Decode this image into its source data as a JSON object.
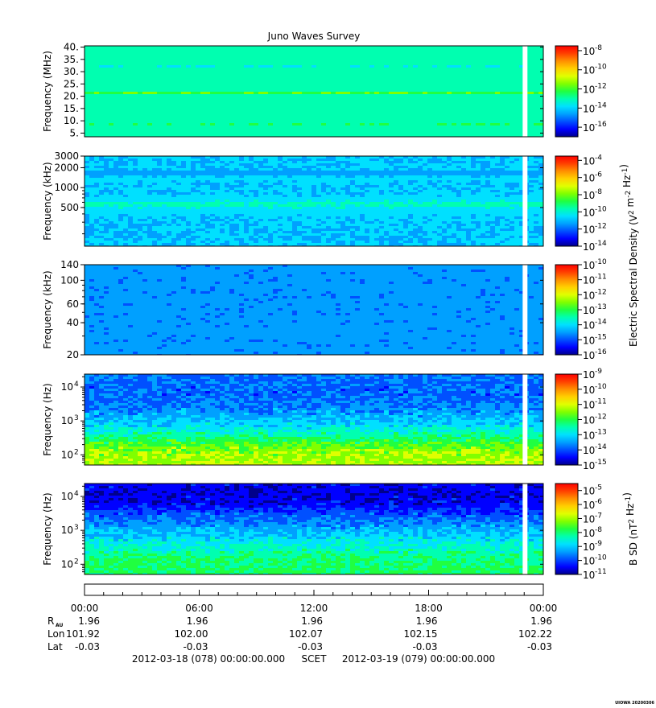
{
  "title": "Juno Waves Survey",
  "footer_stamp": "UIOWA 20200306",
  "colormap": [
    "#00008c",
    "#0000ff",
    "#0050ff",
    "#00a0ff",
    "#00e0ff",
    "#00ffb0",
    "#20ff40",
    "#80ff00",
    "#e0ff00",
    "#ffd000",
    "#ff9000",
    "#ff4000",
    "#ff0000"
  ],
  "gap": {
    "start_hour": 22.92,
    "end_hour": 23.17
  },
  "colorbar_groups": [
    {
      "label": "Electric Spectral Density (V",
      "sup1": "2",
      "mid": " m",
      "sup2": "-2",
      "mid2": " Hz",
      "sup3": "-1",
      "end": ")",
      "panels": [
        0,
        1,
        2,
        3
      ]
    },
    {
      "label": "B SD (nT",
      "sup1": "2",
      "mid": " Hz",
      "sup2": "-1",
      "mid2": "",
      "sup3": "",
      "end": ")",
      "panels": [
        4
      ]
    }
  ],
  "chart_data": [
    {
      "type": "heatmap",
      "name": "HFR high band",
      "ylabel": "Frequency (MHz)",
      "yscale": "linear",
      "ylim": [
        3.5,
        40.5
      ],
      "yticks": [
        {
          "v": 5,
          "label": "5."
        },
        {
          "v": 10,
          "label": "10."
        },
        {
          "v": 15,
          "label": "15."
        },
        {
          "v": 20,
          "label": "20."
        },
        {
          "v": 25,
          "label": "25."
        },
        {
          "v": 30,
          "label": "30."
        },
        {
          "v": 35,
          "label": "35."
        },
        {
          "v": 40,
          "label": "40."
        }
      ],
      "zscale": "log",
      "zlim": [
        -17,
        -7.5
      ],
      "zticks": [
        {
          "exp": -8
        },
        {
          "exp": -10
        },
        {
          "exp": -12
        },
        {
          "exp": -14
        },
        {
          "exp": -16
        }
      ],
      "base_level": -13.2,
      "bands": [
        {
          "center": 21.3,
          "width": 0.8,
          "level": -11.9
        },
        {
          "center": 8.7,
          "width": 0.7,
          "level": -12.7
        },
        {
          "center": 32.5,
          "width": 0.5,
          "level": -13.5
        }
      ]
    },
    {
      "type": "heatmap",
      "name": "HFR low band",
      "ylabel": "Frequency (kHz)",
      "yscale": "log",
      "ylim": [
        130,
        3000
      ],
      "yticks": [
        {
          "v": 500,
          "label": "500"
        },
        {
          "v": 1000,
          "label": "1000"
        },
        {
          "v": 2000,
          "label": "2000"
        },
        {
          "v": 3000,
          "label": "3000"
        }
      ],
      "zscale": "log",
      "zlim": [
        -14,
        -3.5
      ],
      "zticks": [
        {
          "exp": -4
        },
        {
          "exp": -6
        },
        {
          "exp": -8
        },
        {
          "exp": -10
        },
        {
          "exp": -12
        },
        {
          "exp": -14
        }
      ],
      "base_level": -10.9,
      "bands": [
        {
          "center": 560,
          "width": 120,
          "level": -9.9
        },
        {
          "center": 1680,
          "width": 90,
          "level": -11.4
        },
        {
          "center": 1350,
          "width": 80,
          "level": -10.5
        }
      ]
    },
    {
      "type": "heatmap",
      "name": "LFR high",
      "ylabel": "Frequency (kHz)",
      "yscale": "log",
      "ylim": [
        20,
        140
      ],
      "yticks": [
        {
          "v": 20,
          "label": "20"
        },
        {
          "v": 40,
          "label": "40"
        },
        {
          "v": 60,
          "label": "60"
        },
        {
          "v": 100,
          "label": "100"
        },
        {
          "v": 140,
          "label": "140"
        }
      ],
      "zscale": "log",
      "zlim": [
        -16,
        -10
      ],
      "zticks": [
        {
          "exp": -10
        },
        {
          "exp": -11
        },
        {
          "exp": -12
        },
        {
          "exp": -13
        },
        {
          "exp": -14
        },
        {
          "exp": -15
        },
        {
          "exp": -16
        }
      ],
      "base_level": -14.6,
      "bands": []
    },
    {
      "type": "heatmap",
      "name": "LFR low (E)",
      "ylabel": "Frequency (Hz)",
      "yscale": "log",
      "ylim": [
        50,
        24000
      ],
      "yticks": [
        {
          "v": 100,
          "label": "10",
          "exp": "2"
        },
        {
          "v": 1000,
          "label": "10",
          "exp": "3"
        },
        {
          "v": 10000,
          "label": "10",
          "exp": "4"
        }
      ],
      "zscale": "log",
      "zlim": [
        -15,
        -9
      ],
      "zticks": [
        {
          "exp": -9
        },
        {
          "exp": -10
        },
        {
          "exp": -11
        },
        {
          "exp": -12
        },
        {
          "exp": -13
        },
        {
          "exp": -14
        },
        {
          "exp": -15
        }
      ],
      "profile": [
        [
          50,
          -11.2
        ],
        [
          150,
          -11.5
        ],
        [
          300,
          -12.2
        ],
        [
          700,
          -13.0
        ],
        [
          2000,
          -13.6
        ],
        [
          6000,
          -13.9
        ],
        [
          24000,
          -13.8
        ]
      ]
    },
    {
      "type": "heatmap",
      "name": "LFR low (B)",
      "ylabel": "Frequency (Hz)",
      "yscale": "log",
      "ylim": [
        50,
        24000
      ],
      "yticks": [
        {
          "v": 100,
          "label": "10",
          "exp": "2"
        },
        {
          "v": 1000,
          "label": "10",
          "exp": "3"
        },
        {
          "v": 10000,
          "label": "10",
          "exp": "4"
        }
      ],
      "zscale": "log",
      "zlim": [
        -11,
        -4.5
      ],
      "zticks": [
        {
          "exp": -5
        },
        {
          "exp": -6
        },
        {
          "exp": -7
        },
        {
          "exp": -8
        },
        {
          "exp": -9
        },
        {
          "exp": -10
        },
        {
          "exp": -11
        }
      ],
      "profile": [
        [
          50,
          -7.9
        ],
        [
          150,
          -8.0
        ],
        [
          400,
          -8.6
        ],
        [
          1000,
          -9.2
        ],
        [
          2500,
          -9.8
        ],
        [
          6000,
          -10.5
        ],
        [
          12000,
          -10.6
        ],
        [
          24000,
          -10.5
        ]
      ]
    }
  ],
  "time_axis": {
    "hours": [
      0,
      6,
      12,
      18,
      24
    ],
    "labels": [
      "00:00",
      "06:00",
      "12:00",
      "18:00",
      "00:00"
    ]
  },
  "ephemeris": [
    {
      "name": "R",
      "sub": "AU",
      "values": [
        "1.96",
        "1.96",
        "1.96",
        "1.96",
        "1.96"
      ]
    },
    {
      "name": "Lon",
      "sub": "",
      "values": [
        "101.92",
        "102.00",
        "102.07",
        "102.15",
        "102.22"
      ]
    },
    {
      "name": "Lat",
      "sub": "",
      "values": [
        "-0.03",
        "-0.03",
        "-0.03",
        "-0.03",
        "-0.03"
      ]
    }
  ],
  "footer": {
    "start": "2012-03-18 (078) 00:00:00.000",
    "mid": "SCET",
    "end": "2012-03-19 (079) 00:00:00.000"
  }
}
